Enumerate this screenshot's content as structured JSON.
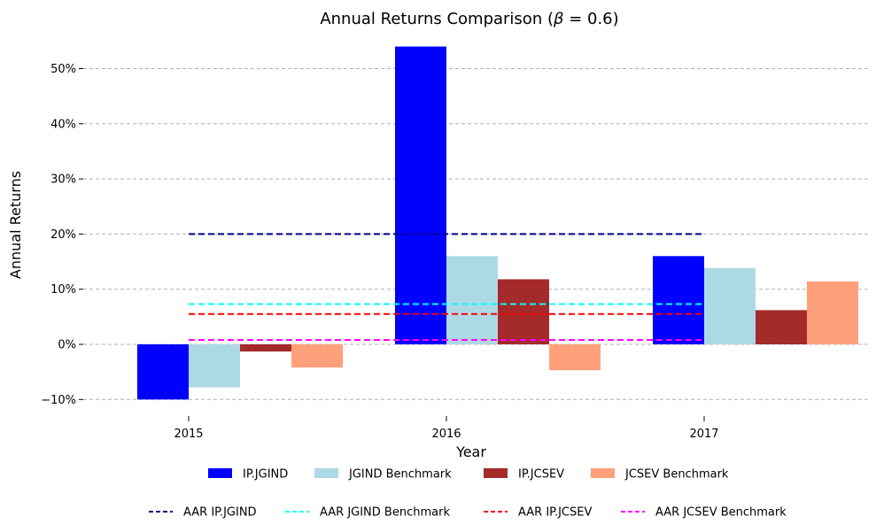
{
  "chart_data": {
    "type": "bar",
    "title_prefix": "Annual Returns Comparison (",
    "title_symbol": "β",
    "title_suffix": " = 0.6)",
    "xlabel": "Year",
    "ylabel": "Annual Returns",
    "categories": [
      "2015",
      "2016",
      "2017"
    ],
    "y_unit": "percent",
    "ylim": [
      -13,
      55
    ],
    "yticks": [
      -10,
      0,
      10,
      20,
      30,
      40,
      50
    ],
    "ytick_labels": [
      "−10%",
      "0%",
      "10%",
      "20%",
      "30%",
      "40%",
      "50%"
    ],
    "grid": "horizontal dashed",
    "series": [
      {
        "name": "IP.JGIND",
        "color": "#0000ff",
        "values": [
          -10.0,
          54.0,
          16.0
        ]
      },
      {
        "name": "JGIND Benchmark",
        "color": "#add8e6",
        "values": [
          -7.8,
          16.0,
          13.8
        ]
      },
      {
        "name": "IP.JCSEV",
        "color": "#a52a2a",
        "values": [
          -1.3,
          11.8,
          6.2
        ]
      },
      {
        "name": "JCSEV Benchmark",
        "color": "#ffa07a",
        "values": [
          -4.2,
          -4.7,
          11.4
        ]
      }
    ],
    "reference_lines": [
      {
        "name": "AAR IP.JGIND",
        "color": "#00008b",
        "value": 20.0
      },
      {
        "name": "AAR JGIND Benchmark",
        "color": "#00ffff",
        "value": 7.3
      },
      {
        "name": "AAR IP.JCSEV",
        "color": "#ff0000",
        "value": 5.5
      },
      {
        "name": "AAR JCSEV Benchmark",
        "color": "#ff00ff",
        "value": 0.8
      }
    ],
    "legend_position": "bottom"
  }
}
